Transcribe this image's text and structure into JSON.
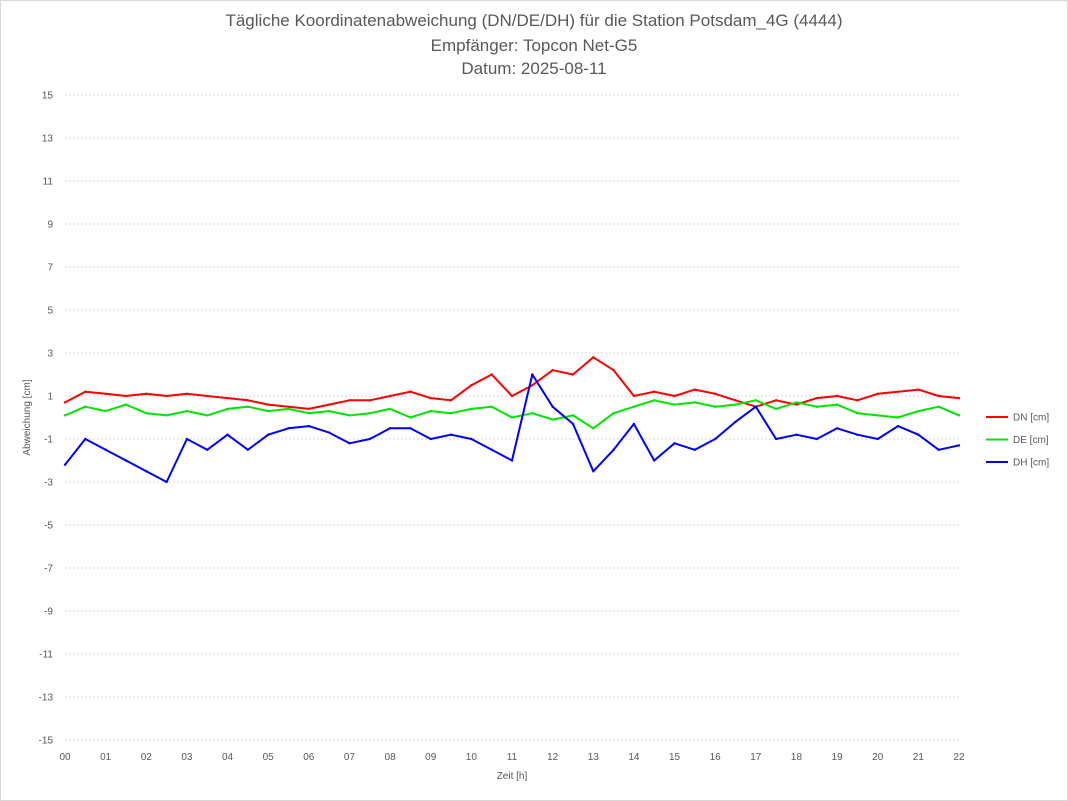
{
  "chart_data": {
    "type": "line",
    "title_lines": [
      "Tägliche Koordinatenabweichung (DN/DE/DH) für die Station Potsdam_4G (4444)",
      "Empfänger: Topcon Net-G5",
      "Datum: 2025-08-11"
    ],
    "xlabel": "Zeit [h]",
    "ylabel": "Abweichung [cm]",
    "xlim": [
      0,
      22
    ],
    "ylim": [
      -15,
      15
    ],
    "x_tick_labels": [
      "00",
      "01",
      "02",
      "03",
      "04",
      "05",
      "06",
      "07",
      "08",
      "09",
      "10",
      "11",
      "12",
      "13",
      "14",
      "15",
      "16",
      "17",
      "18",
      "19",
      "20",
      "21",
      "22"
    ],
    "y_ticks": [
      15,
      13,
      11,
      9,
      7,
      5,
      3,
      1,
      -1,
      -3,
      -5,
      -7,
      -9,
      -11,
      -13,
      -15
    ],
    "grid": true,
    "legend_position": "right",
    "x": [
      0,
      0.5,
      1,
      1.5,
      2,
      2.5,
      3,
      3.5,
      4,
      4.5,
      5,
      5.5,
      6,
      6.5,
      7,
      7.5,
      8,
      8.5,
      9,
      9.5,
      10,
      10.5,
      11,
      11.5,
      12,
      12.5,
      13,
      13.5,
      14,
      14.5,
      15,
      15.5,
      16,
      16.5,
      17,
      17.5,
      18,
      18.5,
      19,
      19.5,
      20,
      20.5,
      21,
      21.5,
      22
    ],
    "series": [
      {
        "name": "DN [cm]",
        "color": "#ff0000",
        "values": [
          0.7,
          1.2,
          1.1,
          1.0,
          1.1,
          1.0,
          1.1,
          1.0,
          0.9,
          0.8,
          0.6,
          0.5,
          0.4,
          0.6,
          0.8,
          0.8,
          1.0,
          1.2,
          0.9,
          0.8,
          1.5,
          2.0,
          1.0,
          1.5,
          2.2,
          2.0,
          2.8,
          2.2,
          1.0,
          1.2,
          1.0,
          1.3,
          1.1,
          0.8,
          0.5,
          0.8,
          0.6,
          0.9,
          1.0,
          0.8,
          1.1,
          1.2,
          1.3,
          1.0,
          0.9
        ]
      },
      {
        "name": "DE [cm]",
        "color": "#00e600",
        "values": [
          0.1,
          0.5,
          0.3,
          0.6,
          0.2,
          0.1,
          0.3,
          0.1,
          0.4,
          0.5,
          0.3,
          0.4,
          0.2,
          0.3,
          0.1,
          0.2,
          0.4,
          0.0,
          0.3,
          0.2,
          0.4,
          0.5,
          0.0,
          0.2,
          -0.1,
          0.1,
          -0.5,
          0.2,
          0.5,
          0.8,
          0.6,
          0.7,
          0.5,
          0.6,
          0.8,
          0.4,
          0.7,
          0.5,
          0.6,
          0.2,
          0.1,
          0.0,
          0.3,
          0.5,
          0.1
        ]
      },
      {
        "name": "DH [cm]",
        "color": "#0000ff",
        "values": [
          -2.2,
          -1.0,
          -1.5,
          -2.0,
          -2.5,
          -3.0,
          -1.0,
          -1.5,
          -0.8,
          -1.5,
          -0.8,
          -0.5,
          -0.4,
          -0.7,
          -1.2,
          -1.0,
          -0.5,
          -0.5,
          -1.0,
          -0.8,
          -1.0,
          -1.5,
          -2.0,
          2.0,
          0.5,
          -0.3,
          -2.5,
          -1.5,
          -0.3,
          -2.0,
          -1.2,
          -1.5,
          -1.0,
          -0.2,
          0.5,
          -1.0,
          -0.8,
          -1.0,
          -0.5,
          -0.8,
          -1.0,
          -0.4,
          -0.8,
          -1.5,
          -1.3
        ]
      }
    ]
  }
}
